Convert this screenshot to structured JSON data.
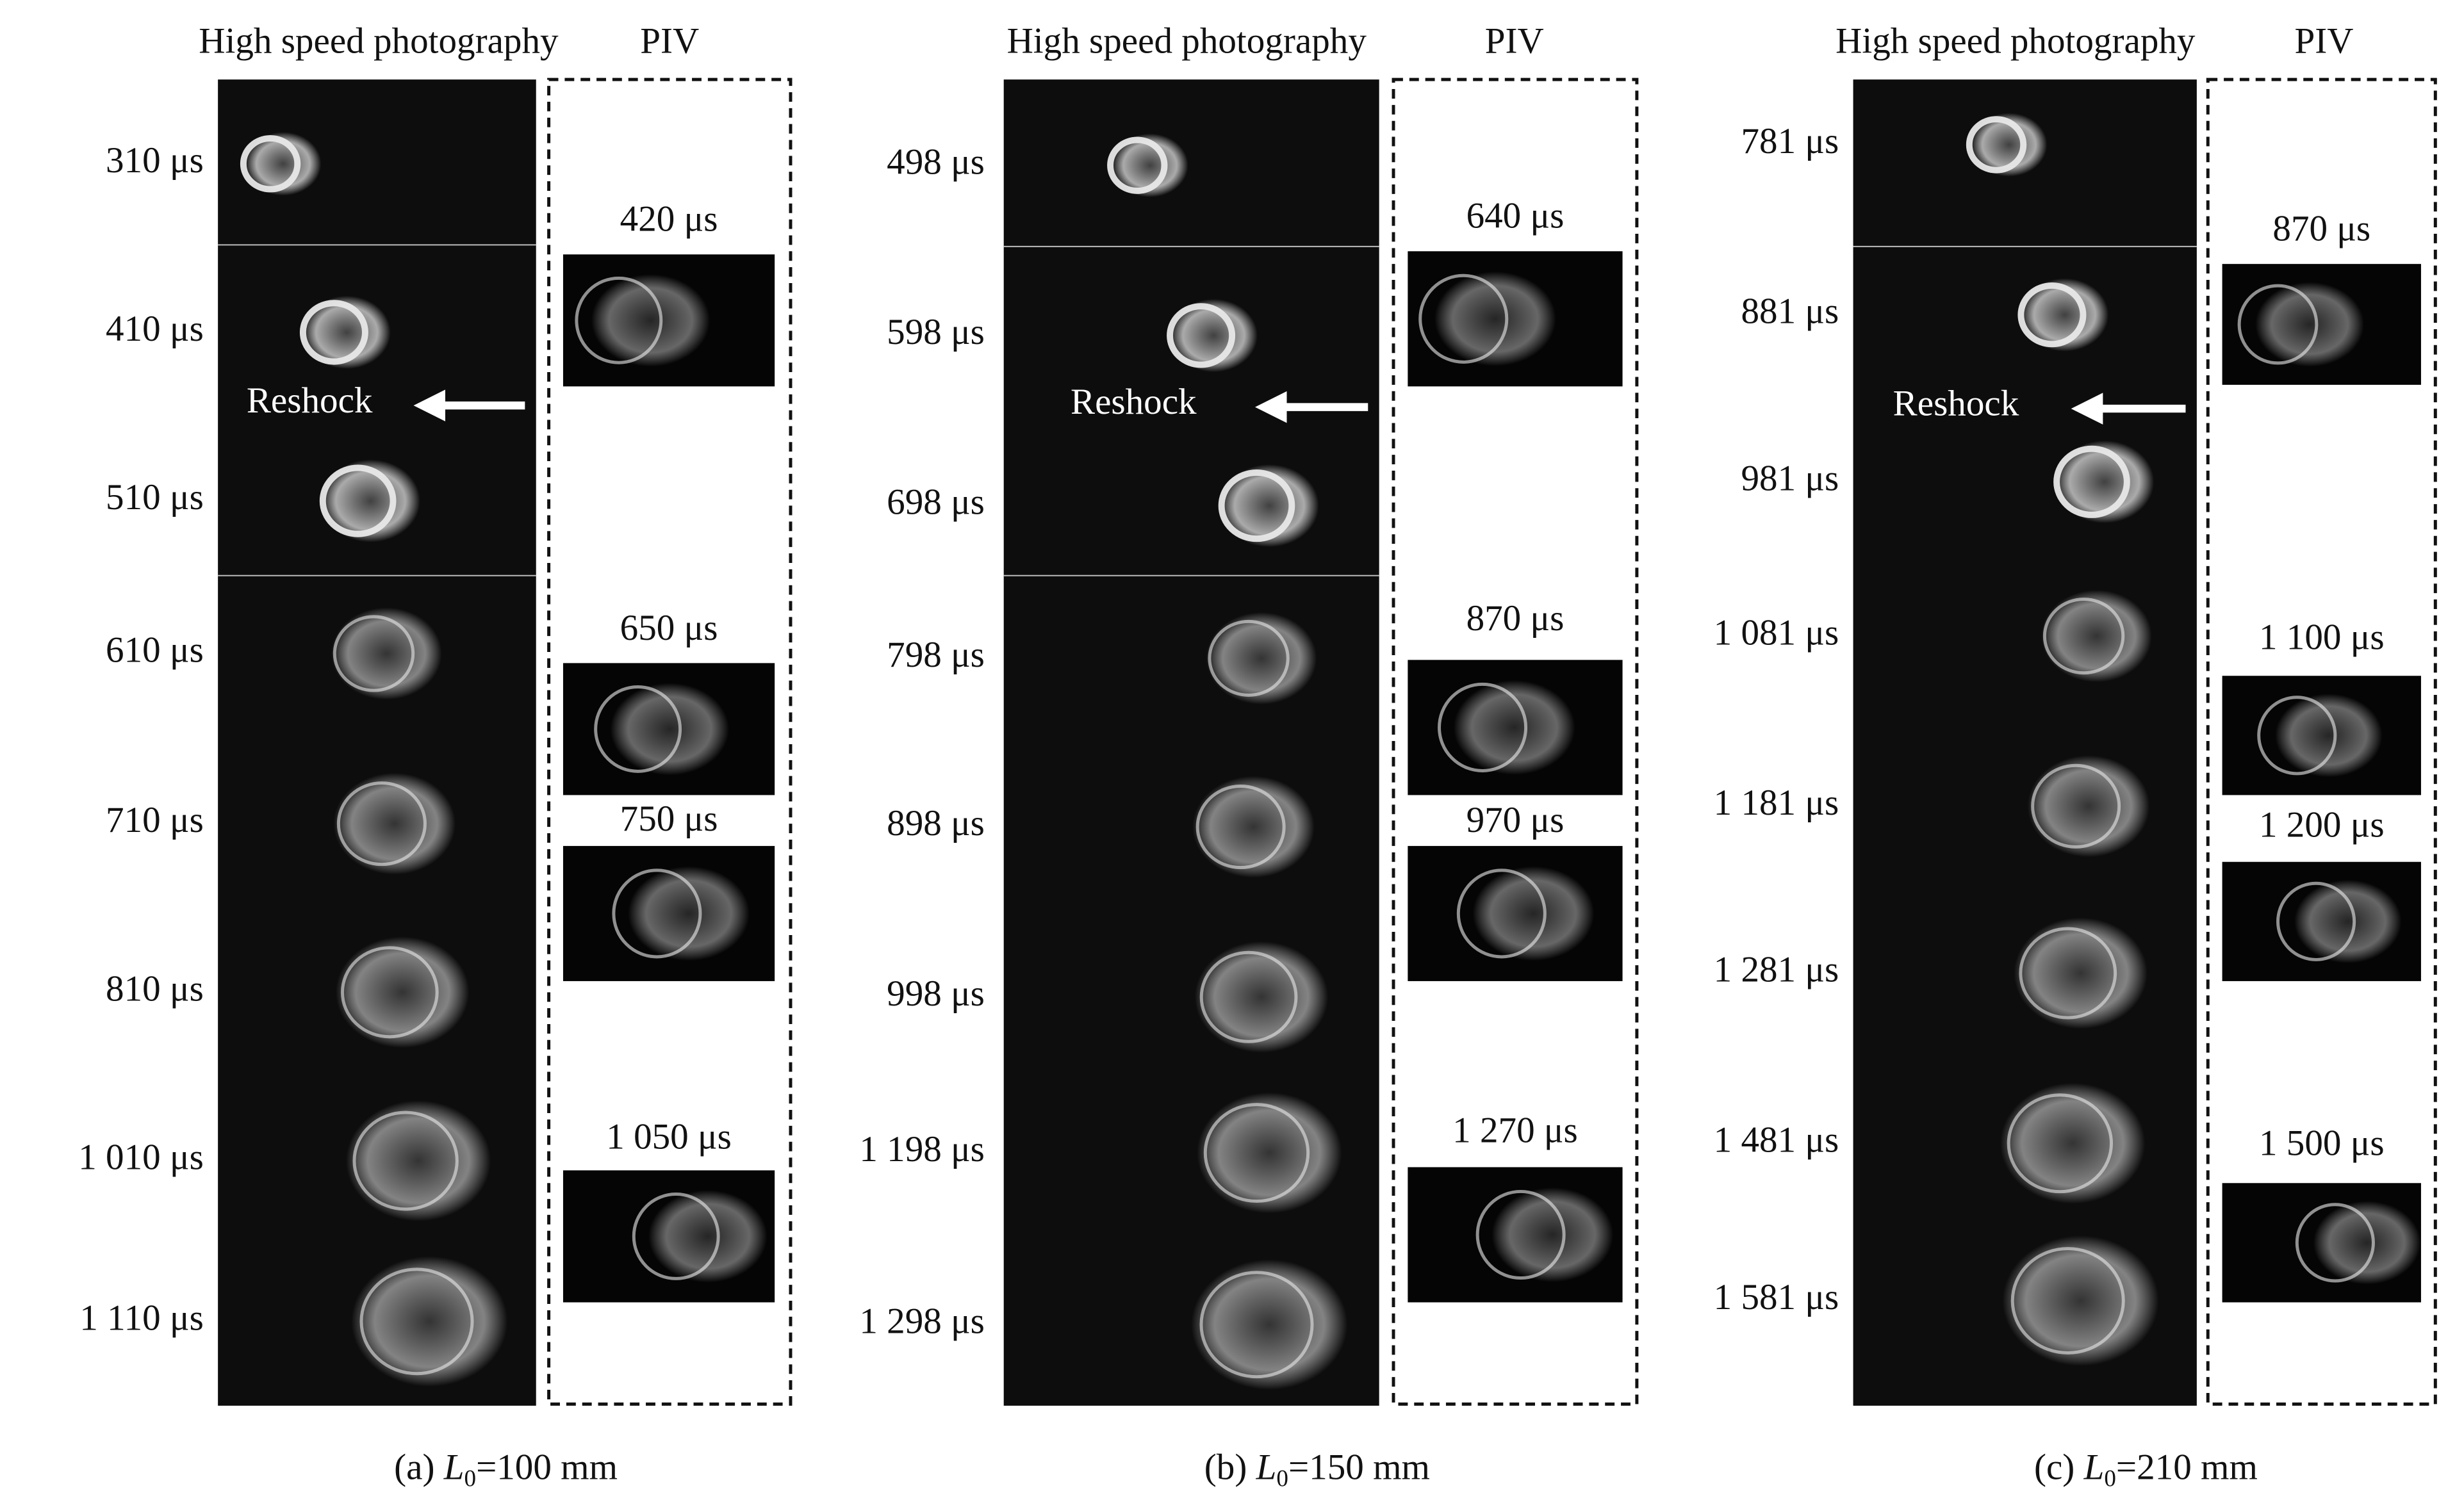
{
  "panels": [
    {
      "header_hsp": "High speed photography",
      "header_piv": "PIV",
      "times": [
        "310 μs",
        "410 μs",
        "510 μs",
        "610 μs",
        "710 μs",
        "810 μs",
        "1 010 μs",
        "1 110 μs"
      ],
      "reshock": "Reshock",
      "piv": [
        "420 μs",
        "650 μs",
        "750 μs",
        "1 050 μs"
      ],
      "caption": {
        "prefix": "(a) ",
        "var": "L",
        "sub": "0",
        "suffix": "=100 mm"
      }
    },
    {
      "header_hsp": "High speed photography",
      "header_piv": "PIV",
      "times": [
        "498 μs",
        "598 μs",
        "698 μs",
        "798 μs",
        "898 μs",
        "998 μs",
        "1 198 μs",
        "1 298 μs"
      ],
      "reshock": "Reshock",
      "piv": [
        "640 μs",
        "870 μs",
        "970 μs",
        "1 270 μs"
      ],
      "caption": {
        "prefix": "(b) ",
        "var": "L",
        "sub": "0",
        "suffix": "=150 mm"
      }
    },
    {
      "header_hsp": "High speed photography",
      "header_piv": "PIV",
      "times": [
        "781 μs",
        "881 μs",
        "981 μs",
        "1 081 μs",
        "1 181 μs",
        "1 281 μs",
        "1 481 μs",
        "1 581 μs"
      ],
      "reshock": "Reshock",
      "piv": [
        "870 μs",
        "1 100 μs",
        "1 200 μs",
        "1 500 μs"
      ],
      "caption": {
        "prefix": "(c) ",
        "var": "L",
        "sub": "0",
        "suffix": "=210 mm"
      }
    }
  ]
}
